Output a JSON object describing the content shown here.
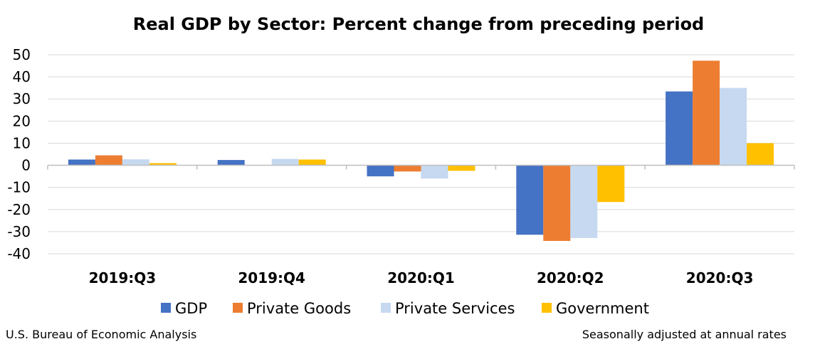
{
  "chart_data": {
    "type": "bar",
    "title": "Real GDP by Sector:  Percent change from preceding period",
    "xlabel": "",
    "ylabel": "",
    "categories": [
      "2019:Q3",
      "2019:Q4",
      "2020:Q1",
      "2020:Q2",
      "2020:Q3"
    ],
    "series": [
      {
        "name": "GDP",
        "color": "#4472c4",
        "values": [
          2.6,
          2.4,
          -5.0,
          -31.4,
          33.4
        ]
      },
      {
        "name": "Private Goods",
        "color": "#ed7d31",
        "values": [
          4.5,
          0.1,
          -2.8,
          -34.2,
          47.3
        ]
      },
      {
        "name": "Private Services",
        "color": "#c6d9f0",
        "values": [
          2.7,
          2.9,
          -6.0,
          -32.9,
          35.0
        ]
      },
      {
        "name": "Government",
        "color": "#ffc000",
        "values": [
          1.0,
          2.6,
          -2.5,
          -16.6,
          10.0
        ]
      }
    ],
    "ylim": [
      -40,
      50
    ],
    "yticks": [
      -40,
      -30,
      -20,
      -10,
      0,
      10,
      20,
      30,
      40,
      50
    ],
    "grid": true,
    "legend_position": "bottom"
  },
  "footer": {
    "source": "U.S. Bureau of Economic Analysis",
    "note": "Seasonally adjusted at annual rates"
  },
  "colors": {
    "grid": "#d9d9d9",
    "axis": "#bfbfbf"
  }
}
